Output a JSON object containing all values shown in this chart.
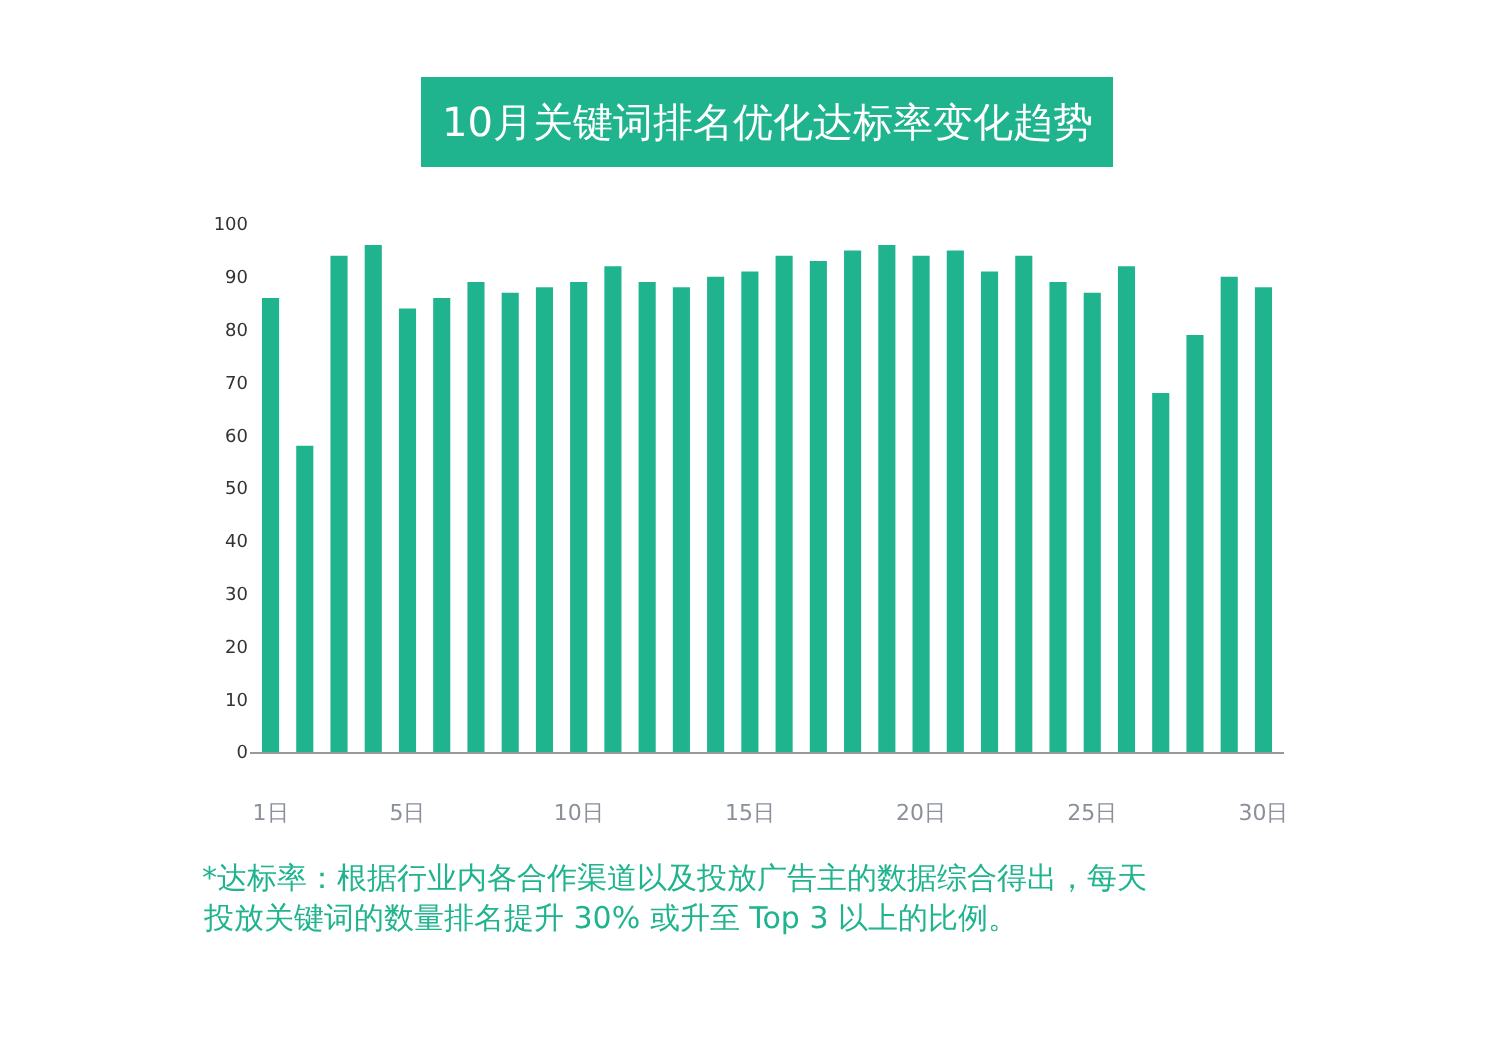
{
  "chart_data": {
    "type": "bar",
    "title": "10月关键词排名优化达标率变化趋势",
    "categories": [
      "1日",
      null,
      null,
      null,
      "5日",
      null,
      null,
      null,
      null,
      "10日",
      null,
      null,
      null,
      null,
      "15日",
      null,
      null,
      null,
      null,
      "20日",
      null,
      null,
      null,
      null,
      "25日",
      null,
      null,
      null,
      null,
      "30日"
    ],
    "values": [
      86,
      58,
      94,
      96,
      84,
      86,
      89,
      87,
      88,
      89,
      92,
      89,
      88,
      90,
      91,
      94,
      93,
      95,
      96,
      94,
      95,
      91,
      94,
      89,
      87,
      92,
      68,
      79,
      90,
      88
    ],
    "color": "#20b48e",
    "ylim": [
      0,
      100
    ],
    "yticks": [
      0,
      10,
      20,
      30,
      40,
      50,
      60,
      70,
      80,
      90,
      100
    ],
    "annotations": [
      "*达标率：根据行业内各合作渠道以及投放广告主的数据综合得出，每天",
      "投放关键词的数量排名提升 30% 或升至 Top 3 以上的比例。"
    ]
  }
}
